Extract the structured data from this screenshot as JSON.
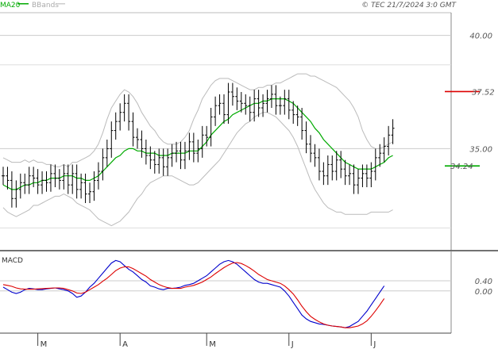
{
  "header": {
    "legend_ma": "MA20",
    "legend_bb": "BBands",
    "timestamp": "© TEC 21/7/2024 3:0 GMT"
  },
  "colors": {
    "ma": "#00aa00",
    "bbands": "#bbbbbb",
    "bars": "#000000",
    "resistance": "#dd0000",
    "macd": "#0000cc",
    "signal": "#dd0000",
    "grid": "#cccccc",
    "label": "#555555"
  },
  "annotations": {
    "resistance_label": "37.52",
    "support_label": "34.24"
  },
  "chart_data": [
    {
      "type": "ohlc",
      "title": "",
      "ylabel": "",
      "ylim": [
        30.5,
        41.0
      ],
      "y_ticks": [
        35.0,
        40.0
      ],
      "y_tick_labels": [
        "35.00",
        "40.00"
      ],
      "x_range": [
        0,
        102
      ],
      "month_ticks": [
        {
          "label": "M",
          "index": 8
        },
        {
          "label": "A",
          "index": 27
        },
        {
          "label": "M",
          "index": 47
        },
        {
          "label": "J",
          "index": 66
        },
        {
          "label": "J",
          "index": 85
        }
      ],
      "close": [
        33.8,
        33.6,
        32.8,
        33.2,
        33.5,
        33.4,
        33.8,
        33.7,
        33.4,
        33.6,
        33.5,
        33.9,
        33.7,
        33.6,
        33.9,
        33.4,
        33.9,
        33.2,
        33.5,
        33.0,
        33.1,
        33.6,
        34.0,
        34.6,
        35.0,
        35.8,
        36.2,
        36.6,
        37.0,
        36.2,
        35.5,
        35.4,
        35.0,
        34.7,
        34.5,
        34.3,
        34.6,
        34.2,
        34.6,
        34.8,
        34.9,
        34.5,
        34.9,
        35.3,
        34.8,
        35.0,
        35.6,
        35.5,
        36.4,
        36.9,
        37.0,
        36.5,
        37.5,
        37.3,
        37.1,
        37.0,
        36.9,
        36.6,
        37.2,
        36.8,
        37.0,
        37.2,
        37.4,
        36.9,
        36.9,
        37.2,
        36.7,
        36.5,
        36.4,
        35.8,
        35.2,
        34.8,
        34.6,
        34.0,
        33.8,
        34.3,
        34.0,
        34.5,
        34.1,
        33.8,
        33.9,
        33.4,
        33.7,
        33.9,
        33.7,
        34.0,
        34.6,
        34.8,
        35.1,
        35.6,
        35.9
      ],
      "high_offset": 0.4,
      "low_offset": 0.4,
      "series": [
        {
          "name": "MA20",
          "values": [
            33.4,
            33.3,
            33.2,
            33.2,
            33.3,
            33.4,
            33.4,
            33.5,
            33.5,
            33.6,
            33.6,
            33.7,
            33.7,
            33.7,
            33.8,
            33.8,
            33.8,
            33.7,
            33.7,
            33.6,
            33.6,
            33.7,
            33.8,
            34.0,
            34.2,
            34.4,
            34.6,
            34.7,
            34.9,
            35.0,
            35.0,
            34.9,
            34.9,
            34.8,
            34.8,
            34.8,
            34.7,
            34.7,
            34.7,
            34.8,
            34.8,
            34.8,
            34.8,
            34.9,
            34.9,
            34.9,
            35.1,
            35.3,
            35.6,
            35.8,
            36.0,
            36.2,
            36.3,
            36.5,
            36.6,
            36.7,
            36.8,
            36.9,
            37.0,
            37.0,
            37.1,
            37.1,
            37.2,
            37.2,
            37.2,
            37.2,
            37.1,
            37.0,
            36.8,
            36.6,
            36.4,
            36.2,
            35.9,
            35.7,
            35.4,
            35.2,
            35.0,
            34.8,
            34.6,
            34.4,
            34.3,
            34.2,
            34.1,
            34.1,
            34.1,
            34.1,
            34.2,
            34.3,
            34.4,
            34.6,
            34.7
          ]
        },
        {
          "name": "BBands",
          "upper": [
            34.6,
            34.5,
            34.4,
            34.4,
            34.4,
            34.5,
            34.4,
            34.5,
            34.4,
            34.4,
            34.3,
            34.3,
            34.2,
            34.2,
            34.3,
            34.2,
            34.4,
            34.4,
            34.5,
            34.6,
            34.7,
            34.9,
            35.2,
            35.7,
            36.3,
            36.8,
            37.1,
            37.4,
            37.6,
            37.5,
            37.3,
            37.0,
            36.6,
            36.3,
            36.0,
            35.8,
            35.5,
            35.3,
            35.2,
            35.2,
            35.2,
            35.3,
            35.5,
            35.8,
            36.3,
            36.7,
            37.2,
            37.5,
            37.8,
            38.0,
            38.1,
            38.1,
            38.1,
            38.0,
            37.9,
            37.8,
            37.7,
            37.6,
            37.6,
            37.7,
            37.7,
            37.8,
            37.8,
            37.9,
            37.9,
            38.0,
            38.1,
            38.2,
            38.3,
            38.3,
            38.3,
            38.2,
            38.2,
            38.1,
            38.0,
            37.9,
            37.8,
            37.7,
            37.5,
            37.3,
            37.1,
            36.8,
            36.4,
            35.8,
            35.4,
            35.1,
            35.0,
            35.0,
            35.1,
            35.2,
            35.3
          ],
          "lower": [
            32.4,
            32.2,
            32.1,
            32.0,
            32.1,
            32.2,
            32.3,
            32.5,
            32.5,
            32.6,
            32.7,
            32.8,
            32.9,
            32.9,
            33.0,
            32.9,
            32.8,
            32.6,
            32.5,
            32.4,
            32.3,
            32.1,
            31.9,
            31.8,
            31.7,
            31.6,
            31.7,
            31.8,
            32.0,
            32.2,
            32.5,
            32.8,
            33.0,
            33.3,
            33.5,
            33.6,
            33.7,
            33.8,
            33.8,
            33.8,
            33.7,
            33.6,
            33.5,
            33.4,
            33.4,
            33.5,
            33.7,
            33.9,
            34.1,
            34.3,
            34.5,
            34.8,
            35.1,
            35.4,
            35.7,
            35.9,
            36.1,
            36.2,
            36.4,
            36.5,
            36.6,
            36.6,
            36.5,
            36.4,
            36.2,
            36.0,
            35.8,
            35.5,
            35.1,
            34.6,
            34.1,
            33.6,
            33.2,
            32.9,
            32.6,
            32.4,
            32.3,
            32.2,
            32.2,
            32.1,
            32.1,
            32.1,
            32.1,
            32.1,
            32.1,
            32.2,
            32.2,
            32.2,
            32.2,
            32.2,
            32.3
          ]
        }
      ],
      "hlines": [
        {
          "label": "37.52",
          "value": 37.52,
          "x_from": 102
        },
        {
          "label": "34.24",
          "value": 34.24,
          "x_from": 102
        }
      ]
    },
    {
      "type": "line",
      "title": "MACD",
      "ylim": [
        -1.6,
        1.4
      ],
      "y_ticks": [
        0.0,
        0.4
      ],
      "y_tick_labels": [
        "0.00",
        "0.40"
      ],
      "x_range": [
        0,
        102
      ],
      "series": [
        {
          "name": "MACD",
          "values": [
            0.15,
            0.05,
            -0.05,
            -0.1,
            -0.05,
            0.05,
            0.1,
            0.08,
            0.05,
            0.05,
            0.08,
            0.1,
            0.12,
            0.08,
            0.05,
            0.0,
            -0.1,
            -0.25,
            -0.2,
            -0.05,
            0.15,
            0.3,
            0.5,
            0.7,
            0.9,
            1.1,
            1.2,
            1.15,
            1.0,
            0.85,
            0.75,
            0.6,
            0.45,
            0.35,
            0.2,
            0.15,
            0.08,
            0.05,
            0.1,
            0.1,
            0.12,
            0.15,
            0.22,
            0.25,
            0.3,
            0.4,
            0.5,
            0.6,
            0.75,
            0.9,
            1.05,
            1.15,
            1.2,
            1.15,
            1.05,
            0.9,
            0.75,
            0.6,
            0.45,
            0.35,
            0.3,
            0.3,
            0.25,
            0.2,
            0.15,
            0.0,
            -0.2,
            -0.45,
            -0.7,
            -0.95,
            -1.1,
            -1.2,
            -1.25,
            -1.3,
            -1.32,
            -1.35,
            -1.38,
            -1.4,
            -1.42,
            -1.45,
            -1.4,
            -1.3,
            -1.2,
            -1.0,
            -0.8,
            -0.55,
            -0.3,
            -0.05,
            0.2
          ]
        },
        {
          "name": "Signal",
          "values": [
            0.25,
            0.22,
            0.18,
            0.12,
            0.08,
            0.07,
            0.07,
            0.07,
            0.08,
            0.09,
            0.1,
            0.11,
            0.12,
            0.12,
            0.1,
            0.05,
            0.0,
            -0.08,
            -0.1,
            -0.05,
            0.05,
            0.15,
            0.25,
            0.38,
            0.5,
            0.65,
            0.8,
            0.9,
            0.95,
            0.95,
            0.88,
            0.78,
            0.68,
            0.58,
            0.45,
            0.35,
            0.25,
            0.18,
            0.13,
            0.1,
            0.1,
            0.1,
            0.15,
            0.18,
            0.22,
            0.28,
            0.35,
            0.45,
            0.55,
            0.68,
            0.8,
            0.92,
            1.02,
            1.1,
            1.12,
            1.08,
            1.0,
            0.9,
            0.78,
            0.65,
            0.55,
            0.45,
            0.4,
            0.35,
            0.3,
            0.2,
            0.05,
            -0.12,
            -0.35,
            -0.6,
            -0.82,
            -1.0,
            -1.12,
            -1.22,
            -1.3,
            -1.35,
            -1.38,
            -1.4,
            -1.42,
            -1.45,
            -1.45,
            -1.42,
            -1.38,
            -1.3,
            -1.18,
            -1.0,
            -0.78,
            -0.55,
            -0.3
          ]
        }
      ]
    }
  ]
}
